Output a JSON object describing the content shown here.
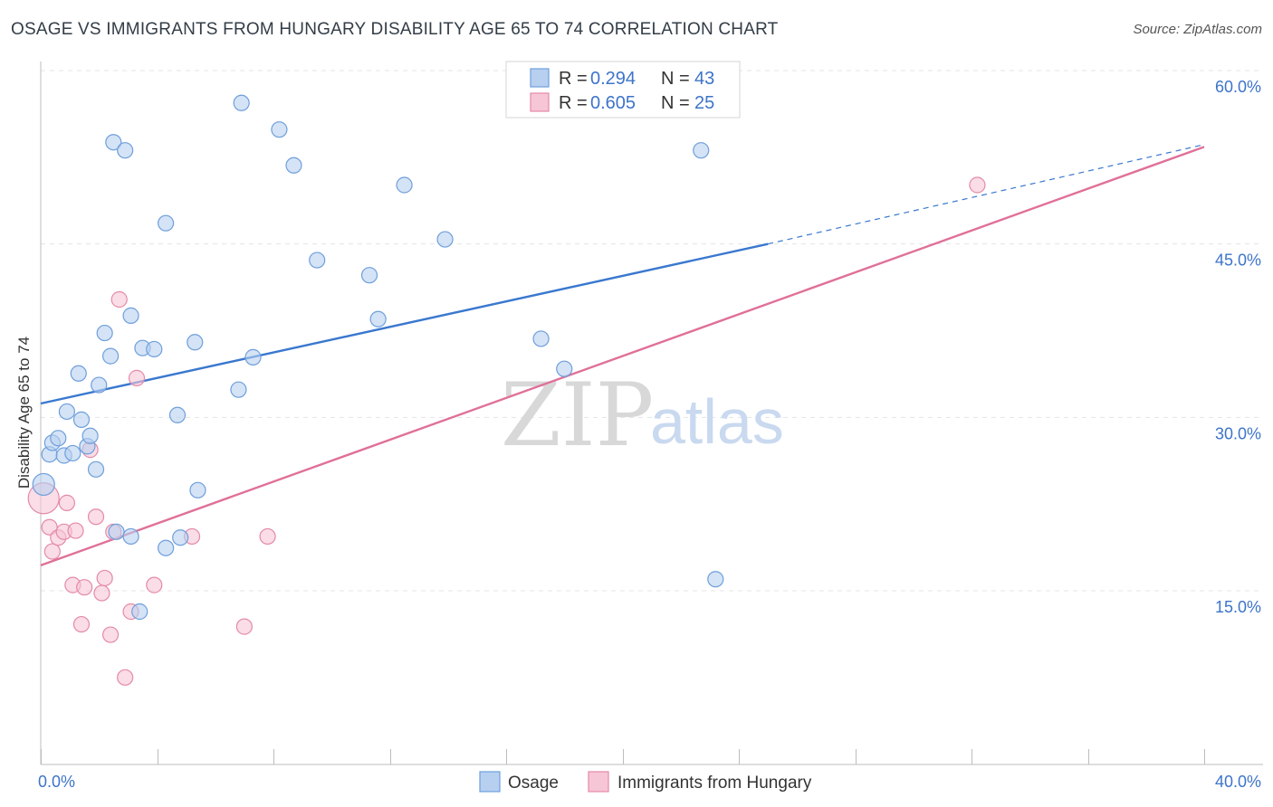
{
  "title": "OSAGE VS IMMIGRANTS FROM HUNGARY DISABILITY AGE 65 TO 74 CORRELATION CHART",
  "source": "Source: ZipAtlas.com",
  "watermark": {
    "zip": "ZIP",
    "atlas": "atlas"
  },
  "colors": {
    "osage_fill": "#b7d0f0",
    "osage_stroke": "#6f9fdb",
    "osage_line": "#3a78cf",
    "hungary_fill": "#f6c6d6",
    "hungary_stroke": "#e48aa8",
    "hungary_line": "#e07098",
    "grid": "#e4e4e4",
    "axis_label": "#3d74c9"
  },
  "legend": {
    "rows": [
      {
        "r_label": "R =",
        "r_value": "0.294",
        "n_label": "N =",
        "n_value": "43"
      },
      {
        "r_label": "R =",
        "r_value": "0.605",
        "n_label": "N =",
        "n_value": "25"
      }
    ]
  },
  "bottom_legend": {
    "series1": "Osage",
    "series2": "Immigrants from Hungary"
  },
  "chart_data": {
    "type": "scatter",
    "title": "OSAGE VS IMMIGRANTS FROM HUNGARY DISABILITY AGE 65 TO 74 CORRELATION CHART",
    "xlabel": "",
    "ylabel": "Disability Age 65 to 74",
    "xlim": [
      0,
      40
    ],
    "ylim": [
      0,
      62
    ],
    "x_tick_labels": [
      "0.0%",
      "40.0%"
    ],
    "y_ticks": [
      15,
      30,
      45,
      60
    ],
    "y_tick_labels": [
      "15.0%",
      "30.0%",
      "45.0%",
      "60.0%"
    ],
    "grid": true,
    "series": [
      {
        "name": "Osage",
        "r": 0.294,
        "n": 43,
        "points": [
          [
            0.1,
            24.2
          ],
          [
            0.3,
            26.8
          ],
          [
            0.4,
            27.8
          ],
          [
            0.6,
            28.2
          ],
          [
            0.8,
            26.7
          ],
          [
            0.9,
            30.5
          ],
          [
            1.1,
            26.9
          ],
          [
            1.3,
            33.8
          ],
          [
            1.4,
            29.8
          ],
          [
            1.6,
            27.5
          ],
          [
            1.7,
            28.4
          ],
          [
            1.9,
            25.5
          ],
          [
            2.0,
            32.8
          ],
          [
            2.2,
            37.3
          ],
          [
            2.4,
            35.3
          ],
          [
            2.5,
            53.8
          ],
          [
            2.6,
            20.1
          ],
          [
            2.9,
            53.1
          ],
          [
            3.1,
            38.8
          ],
          [
            3.1,
            19.7
          ],
          [
            3.4,
            13.2
          ],
          [
            3.5,
            36.0
          ],
          [
            3.9,
            35.9
          ],
          [
            4.3,
            18.7
          ],
          [
            4.3,
            46.8
          ],
          [
            4.7,
            30.2
          ],
          [
            4.8,
            19.6
          ],
          [
            5.3,
            36.5
          ],
          [
            5.4,
            23.7
          ],
          [
            6.8,
            32.4
          ],
          [
            6.9,
            57.2
          ],
          [
            7.3,
            35.2
          ],
          [
            8.2,
            54.9
          ],
          [
            8.7,
            51.8
          ],
          [
            9.5,
            43.6
          ],
          [
            11.3,
            42.3
          ],
          [
            11.6,
            38.5
          ],
          [
            12.5,
            50.1
          ],
          [
            13.9,
            45.4
          ],
          [
            17.2,
            36.8
          ],
          [
            18.0,
            34.2
          ],
          [
            22.7,
            53.1
          ],
          [
            23.2,
            16.0
          ]
        ],
        "trend": {
          "x1": 0,
          "y1": 31.2,
          "x2": 25,
          "y2": 45.0,
          "dashed_to_x": 40,
          "dashed_to_y": 53.6
        }
      },
      {
        "name": "Immigrants from Hungary",
        "r": 0.605,
        "n": 25,
        "points": [
          [
            0.1,
            23.0
          ],
          [
            0.3,
            20.5
          ],
          [
            0.4,
            18.4
          ],
          [
            0.6,
            19.6
          ],
          [
            0.8,
            20.1
          ],
          [
            0.9,
            22.6
          ],
          [
            1.1,
            15.5
          ],
          [
            1.2,
            20.2
          ],
          [
            1.4,
            12.1
          ],
          [
            1.5,
            15.3
          ],
          [
            1.7,
            27.2
          ],
          [
            1.9,
            21.4
          ],
          [
            2.1,
            14.8
          ],
          [
            2.2,
            16.1
          ],
          [
            2.4,
            11.2
          ],
          [
            2.5,
            20.1
          ],
          [
            2.7,
            40.2
          ],
          [
            2.9,
            7.5
          ],
          [
            3.1,
            13.2
          ],
          [
            3.3,
            33.4
          ],
          [
            3.9,
            15.5
          ],
          [
            5.2,
            19.7
          ],
          [
            7.0,
            11.9
          ],
          [
            7.8,
            19.7
          ],
          [
            32.2,
            50.1
          ]
        ],
        "trend": {
          "x1": 0,
          "y1": 17.2,
          "x2": 40,
          "y2": 53.4
        }
      }
    ]
  }
}
